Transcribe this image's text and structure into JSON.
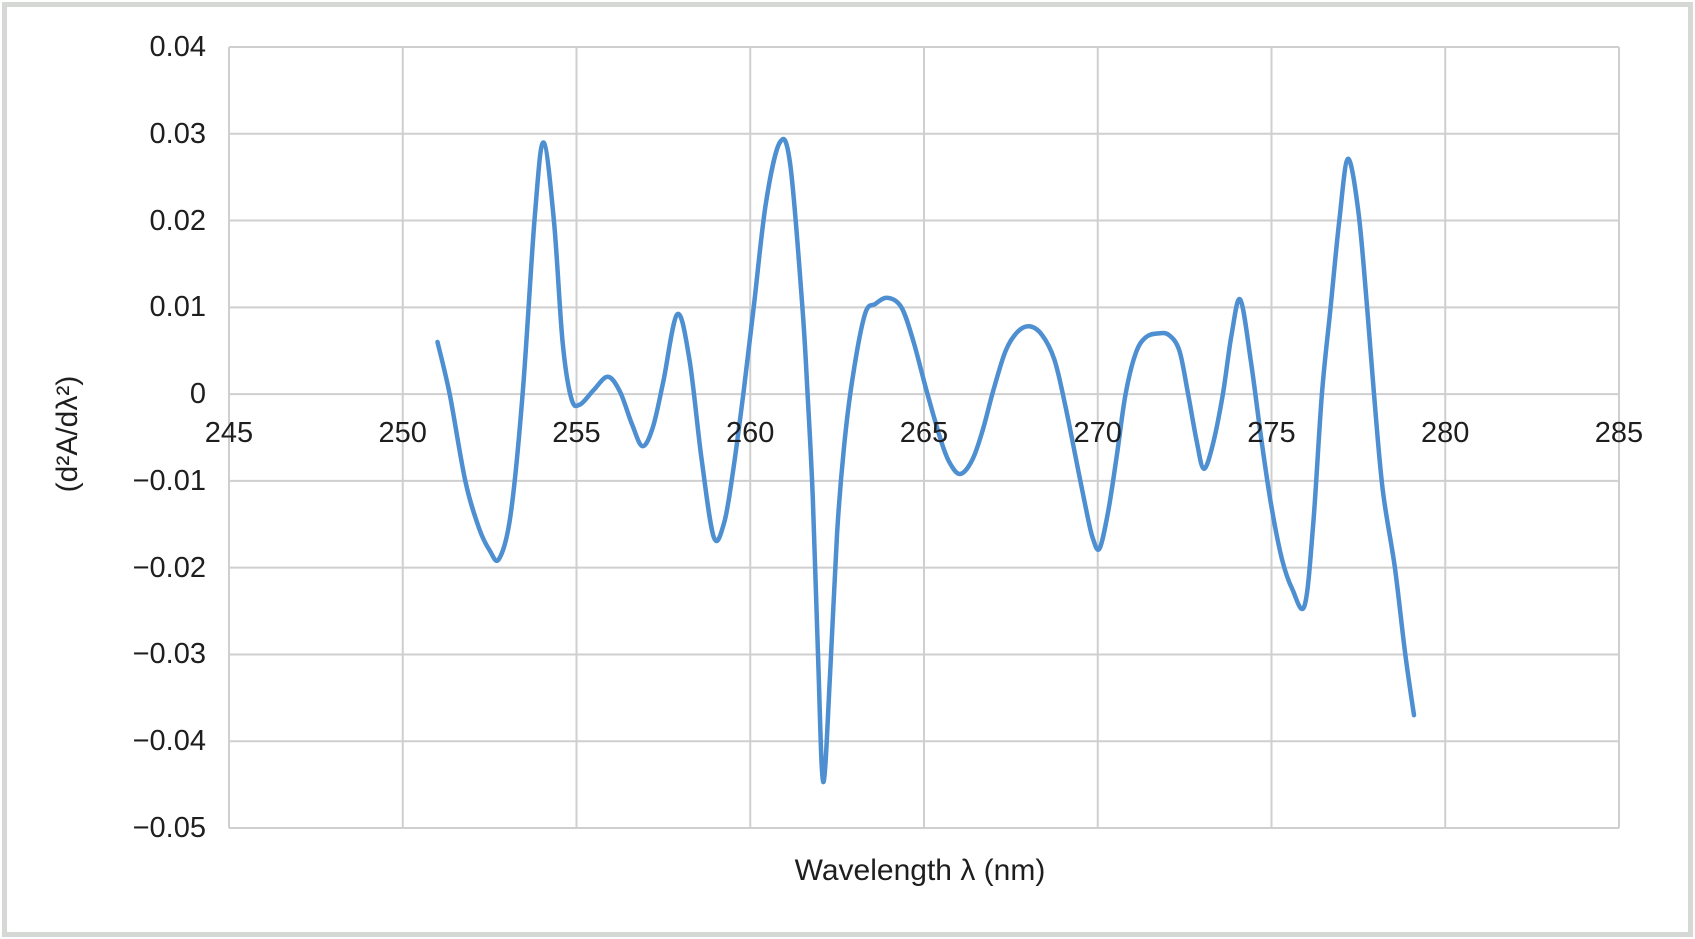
{
  "chart_data": {
    "type": "line",
    "title": "",
    "xlabel": "Wavelength λ (nm)",
    "ylabel": "(d²A/dλ²)",
    "xlim": [
      245,
      285
    ],
    "ylim": [
      -0.05,
      0.04
    ],
    "grid": "both",
    "legend": "none",
    "x_ticks": [
      {
        "value": 245,
        "label": "245"
      },
      {
        "value": 250,
        "label": "250"
      },
      {
        "value": 255,
        "label": "255"
      },
      {
        "value": 260,
        "label": "260"
      },
      {
        "value": 265,
        "label": "265"
      },
      {
        "value": 270,
        "label": "270"
      },
      {
        "value": 275,
        "label": "275"
      },
      {
        "value": 280,
        "label": "280"
      },
      {
        "value": 285,
        "label": "285"
      }
    ],
    "y_ticks": [
      {
        "value": 0.04,
        "label": "0.04"
      },
      {
        "value": 0.03,
        "label": "0.03"
      },
      {
        "value": 0.02,
        "label": "0.02"
      },
      {
        "value": 0.01,
        "label": "0.01"
      },
      {
        "value": 0,
        "label": "0"
      },
      {
        "value": -0.01,
        "label": "−0.01"
      },
      {
        "value": -0.02,
        "label": "−0.02"
      },
      {
        "value": -0.03,
        "label": "−0.03"
      },
      {
        "value": -0.04,
        "label": "−0.04"
      },
      {
        "value": -0.05,
        "label": "−0.05"
      }
    ],
    "colors": {
      "line": "#4d8fd1",
      "grid": "#cfcfcf",
      "text": "#1e1e1e",
      "frame": "#d6d8d5",
      "background": "#ffffff"
    },
    "series": [
      {
        "points": [
          [
            251.0,
            0.006
          ],
          [
            251.35,
            0.0
          ],
          [
            251.8,
            -0.01
          ],
          [
            252.2,
            -0.0155
          ],
          [
            252.5,
            -0.018
          ],
          [
            252.77,
            -0.019
          ],
          [
            253.1,
            -0.014
          ],
          [
            253.45,
            0.0
          ],
          [
            253.8,
            0.0205
          ],
          [
            254.05,
            0.029
          ],
          [
            254.35,
            0.02
          ],
          [
            254.6,
            0.006
          ],
          [
            254.85,
            -0.0005
          ],
          [
            255.1,
            -0.0012
          ],
          [
            255.5,
            0.0005
          ],
          [
            255.9,
            0.002
          ],
          [
            256.25,
            0.0003
          ],
          [
            256.6,
            -0.0035
          ],
          [
            256.9,
            -0.006
          ],
          [
            257.2,
            -0.0038
          ],
          [
            257.5,
            0.0015
          ],
          [
            257.9,
            0.0092
          ],
          [
            258.25,
            0.004
          ],
          [
            258.6,
            -0.0075
          ],
          [
            258.95,
            -0.0165
          ],
          [
            259.25,
            -0.0148
          ],
          [
            259.5,
            -0.009
          ],
          [
            259.8,
            0.0
          ],
          [
            260.1,
            0.01
          ],
          [
            260.45,
            0.022
          ],
          [
            260.85,
            0.029
          ],
          [
            261.15,
            0.0265
          ],
          [
            261.5,
            0.01
          ],
          [
            261.65,
            0.0
          ],
          [
            261.8,
            -0.012
          ],
          [
            261.95,
            -0.03
          ],
          [
            262.1,
            -0.0447
          ],
          [
            262.3,
            -0.032
          ],
          [
            262.5,
            -0.016
          ],
          [
            262.7,
            -0.006
          ],
          [
            262.95,
            0.002
          ],
          [
            263.3,
            0.0092
          ],
          [
            263.6,
            0.0104
          ],
          [
            263.95,
            0.0111
          ],
          [
            264.35,
            0.01
          ],
          [
            264.7,
            0.006
          ],
          [
            265.1,
            0.0
          ],
          [
            265.5,
            -0.0055
          ],
          [
            265.75,
            -0.008
          ],
          [
            266.05,
            -0.0092
          ],
          [
            266.4,
            -0.0075
          ],
          [
            266.7,
            -0.004
          ],
          [
            267.0,
            0.0005
          ],
          [
            267.35,
            0.005
          ],
          [
            267.7,
            0.0072
          ],
          [
            268.05,
            0.0078
          ],
          [
            268.4,
            0.0068
          ],
          [
            268.75,
            0.004
          ],
          [
            269.05,
            -0.001
          ],
          [
            269.35,
            -0.007
          ],
          [
            269.65,
            -0.013
          ],
          [
            269.85,
            -0.0165
          ],
          [
            270.05,
            -0.0178
          ],
          [
            270.3,
            -0.0135
          ],
          [
            270.55,
            -0.007
          ],
          [
            270.8,
            0.0
          ],
          [
            271.1,
            0.0048
          ],
          [
            271.4,
            0.0066
          ],
          [
            271.75,
            0.007
          ],
          [
            272.05,
            0.0068
          ],
          [
            272.35,
            0.005
          ],
          [
            272.6,
            0.0
          ],
          [
            272.85,
            -0.0055
          ],
          [
            273.05,
            -0.0086
          ],
          [
            273.3,
            -0.006
          ],
          [
            273.6,
            0.0
          ],
          [
            273.85,
            0.0068
          ],
          [
            274.1,
            0.0109
          ],
          [
            274.4,
            0.004
          ],
          [
            274.7,
            -0.005
          ],
          [
            275.0,
            -0.013
          ],
          [
            275.3,
            -0.019
          ],
          [
            275.6,
            -0.0225
          ],
          [
            275.95,
            -0.0244
          ],
          [
            276.2,
            -0.015
          ],
          [
            276.45,
            0.0
          ],
          [
            276.7,
            0.01
          ],
          [
            276.95,
            0.02
          ],
          [
            277.2,
            0.0271
          ],
          [
            277.5,
            0.021
          ],
          [
            277.75,
            0.01
          ],
          [
            277.95,
            0.0
          ],
          [
            278.2,
            -0.011
          ],
          [
            278.55,
            -0.02
          ],
          [
            278.85,
            -0.03
          ],
          [
            279.1,
            -0.037
          ]
        ]
      }
    ]
  }
}
